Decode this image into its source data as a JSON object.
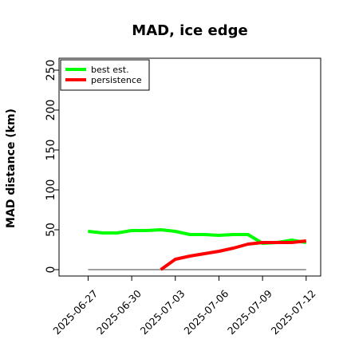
{
  "chart_data": {
    "type": "line",
    "title": "MAD, ice edge",
    "xlabel": "",
    "ylabel": "MAD distance (km)",
    "ylim": [
      -8,
      265
    ],
    "xlim": [
      "2025-06-25",
      "2025-07-13"
    ],
    "yticks": [
      0,
      50,
      100,
      150,
      200,
      250
    ],
    "xticks": [
      "2025-06-27",
      "2025-06-30",
      "2025-07-03",
      "2025-07-06",
      "2025-07-09",
      "2025-07-12"
    ],
    "grid": false,
    "legend_position": "top-left",
    "reference_line": {
      "y": 0,
      "from": "2025-06-27",
      "to": "2025-07-12",
      "color": "#808080"
    },
    "series": [
      {
        "name": "best est.",
        "color": "#00ff00",
        "x": [
          "2025-06-27",
          "2025-06-28",
          "2025-06-29",
          "2025-06-30",
          "2025-07-01",
          "2025-07-02",
          "2025-07-03",
          "2025-07-04",
          "2025-07-05",
          "2025-07-06",
          "2025-07-07",
          "2025-07-08",
          "2025-07-09",
          "2025-07-10",
          "2025-07-11",
          "2025-07-12"
        ],
        "y": [
          48,
          46,
          46,
          49,
          49,
          50,
          48,
          44,
          44,
          43,
          44,
          44,
          33,
          34,
          37,
          34
        ]
      },
      {
        "name": "persistence",
        "color": "#ff0000",
        "x": [
          "2025-07-02",
          "2025-07-03",
          "2025-07-04",
          "2025-07-05",
          "2025-07-06",
          "2025-07-07",
          "2025-07-08",
          "2025-07-09",
          "2025-07-10",
          "2025-07-11",
          "2025-07-12"
        ],
        "y": [
          0,
          13,
          17,
          20,
          23,
          27,
          32,
          34,
          34,
          34,
          36
        ]
      }
    ]
  }
}
